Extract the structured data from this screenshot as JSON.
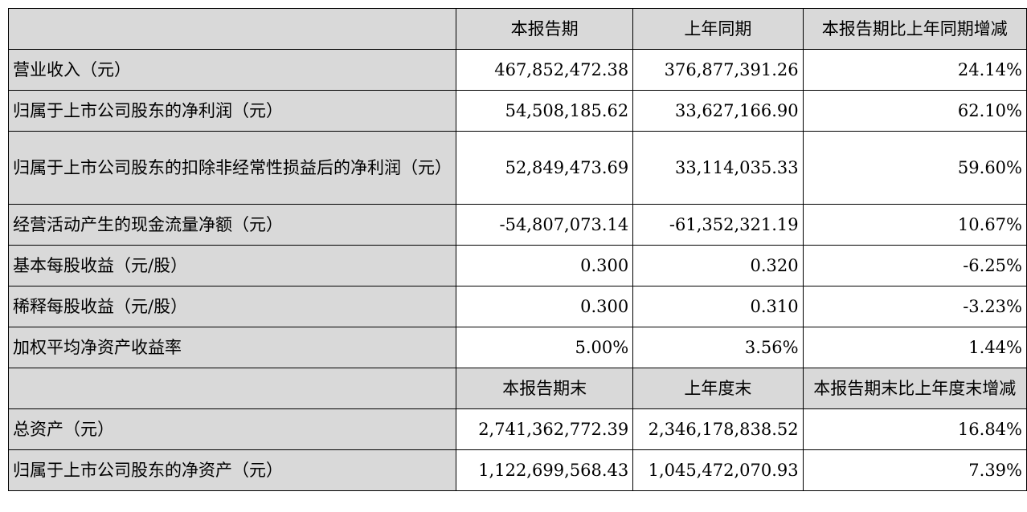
{
  "header1": {
    "c1": "本报告期",
    "c2": "上年同期",
    "c3": "本报告期比上年同期增减"
  },
  "rows1": [
    {
      "label": "营业收入（元）",
      "v1": "467,852,472.38",
      "v2": "376,877,391.26",
      "v3": "24.14%"
    },
    {
      "label": "归属于上市公司股东的净利润（元）",
      "v1": "54,508,185.62",
      "v2": "33,627,166.90",
      "v3": "62.10%"
    },
    {
      "label": "归属于上市公司股东的扣除非经常性损益后的净利润（元）",
      "v1": "52,849,473.69",
      "v2": "33,114,035.33",
      "v3": "59.60%"
    },
    {
      "label": "经营活动产生的现金流量净额（元）",
      "v1": "-54,807,073.14",
      "v2": "-61,352,321.19",
      "v3": "10.67%"
    },
    {
      "label": "基本每股收益（元/股）",
      "v1": "0.300",
      "v2": "0.320",
      "v3": "-6.25%"
    },
    {
      "label": "稀释每股收益（元/股）",
      "v1": "0.300",
      "v2": "0.310",
      "v3": "-3.23%"
    },
    {
      "label": "加权平均净资产收益率",
      "v1": "5.00%",
      "v2": "3.56%",
      "v3": "1.44%"
    }
  ],
  "header2": {
    "c1": "本报告期末",
    "c2": "上年度末",
    "c3": "本报告期末比上年度末增减"
  },
  "rows2": [
    {
      "label": "总资产（元）",
      "v1": "2,741,362,772.39",
      "v2": "2,346,178,838.52",
      "v3": "16.84%"
    },
    {
      "label": "归属于上市公司股东的净资产（元）",
      "v1": "1,122,699,568.43",
      "v2": "1,045,472,070.93",
      "v3": "7.39%"
    }
  ]
}
